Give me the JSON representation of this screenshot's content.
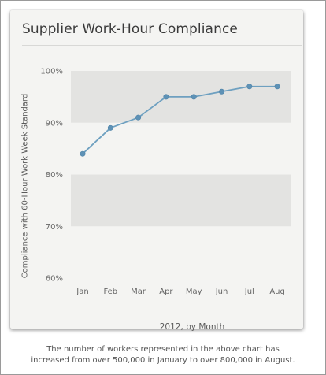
{
  "caption": [
    "The number of workers represented in the above chart has",
    "increased from over 500,000 in January to over 800,000 in August."
  ],
  "chart_data": {
    "type": "line",
    "title": "Supplier Work-Hour Compliance",
    "xlabel": "2012, by Month",
    "ylabel": "Compliance with 60-Hour Work Week Standard",
    "categories": [
      "Jan",
      "Feb",
      "Mar",
      "Apr",
      "May",
      "Jun",
      "Jul",
      "Aug"
    ],
    "series": [
      {
        "values": [
          84,
          89,
          91,
          95,
          95,
          96,
          97,
          97
        ]
      }
    ],
    "ylim": [
      60,
      100
    ],
    "yticks": [
      60,
      70,
      80,
      90,
      100
    ],
    "ytick_labels": [
      "60%",
      "70%",
      "80%",
      "90%",
      "100%"
    ],
    "grid": "alternating horizontal bands",
    "legend": "none",
    "colors": {
      "line": "#6ea0c0",
      "marker": "#5e92b6",
      "band": "#e3e3e1"
    }
  }
}
